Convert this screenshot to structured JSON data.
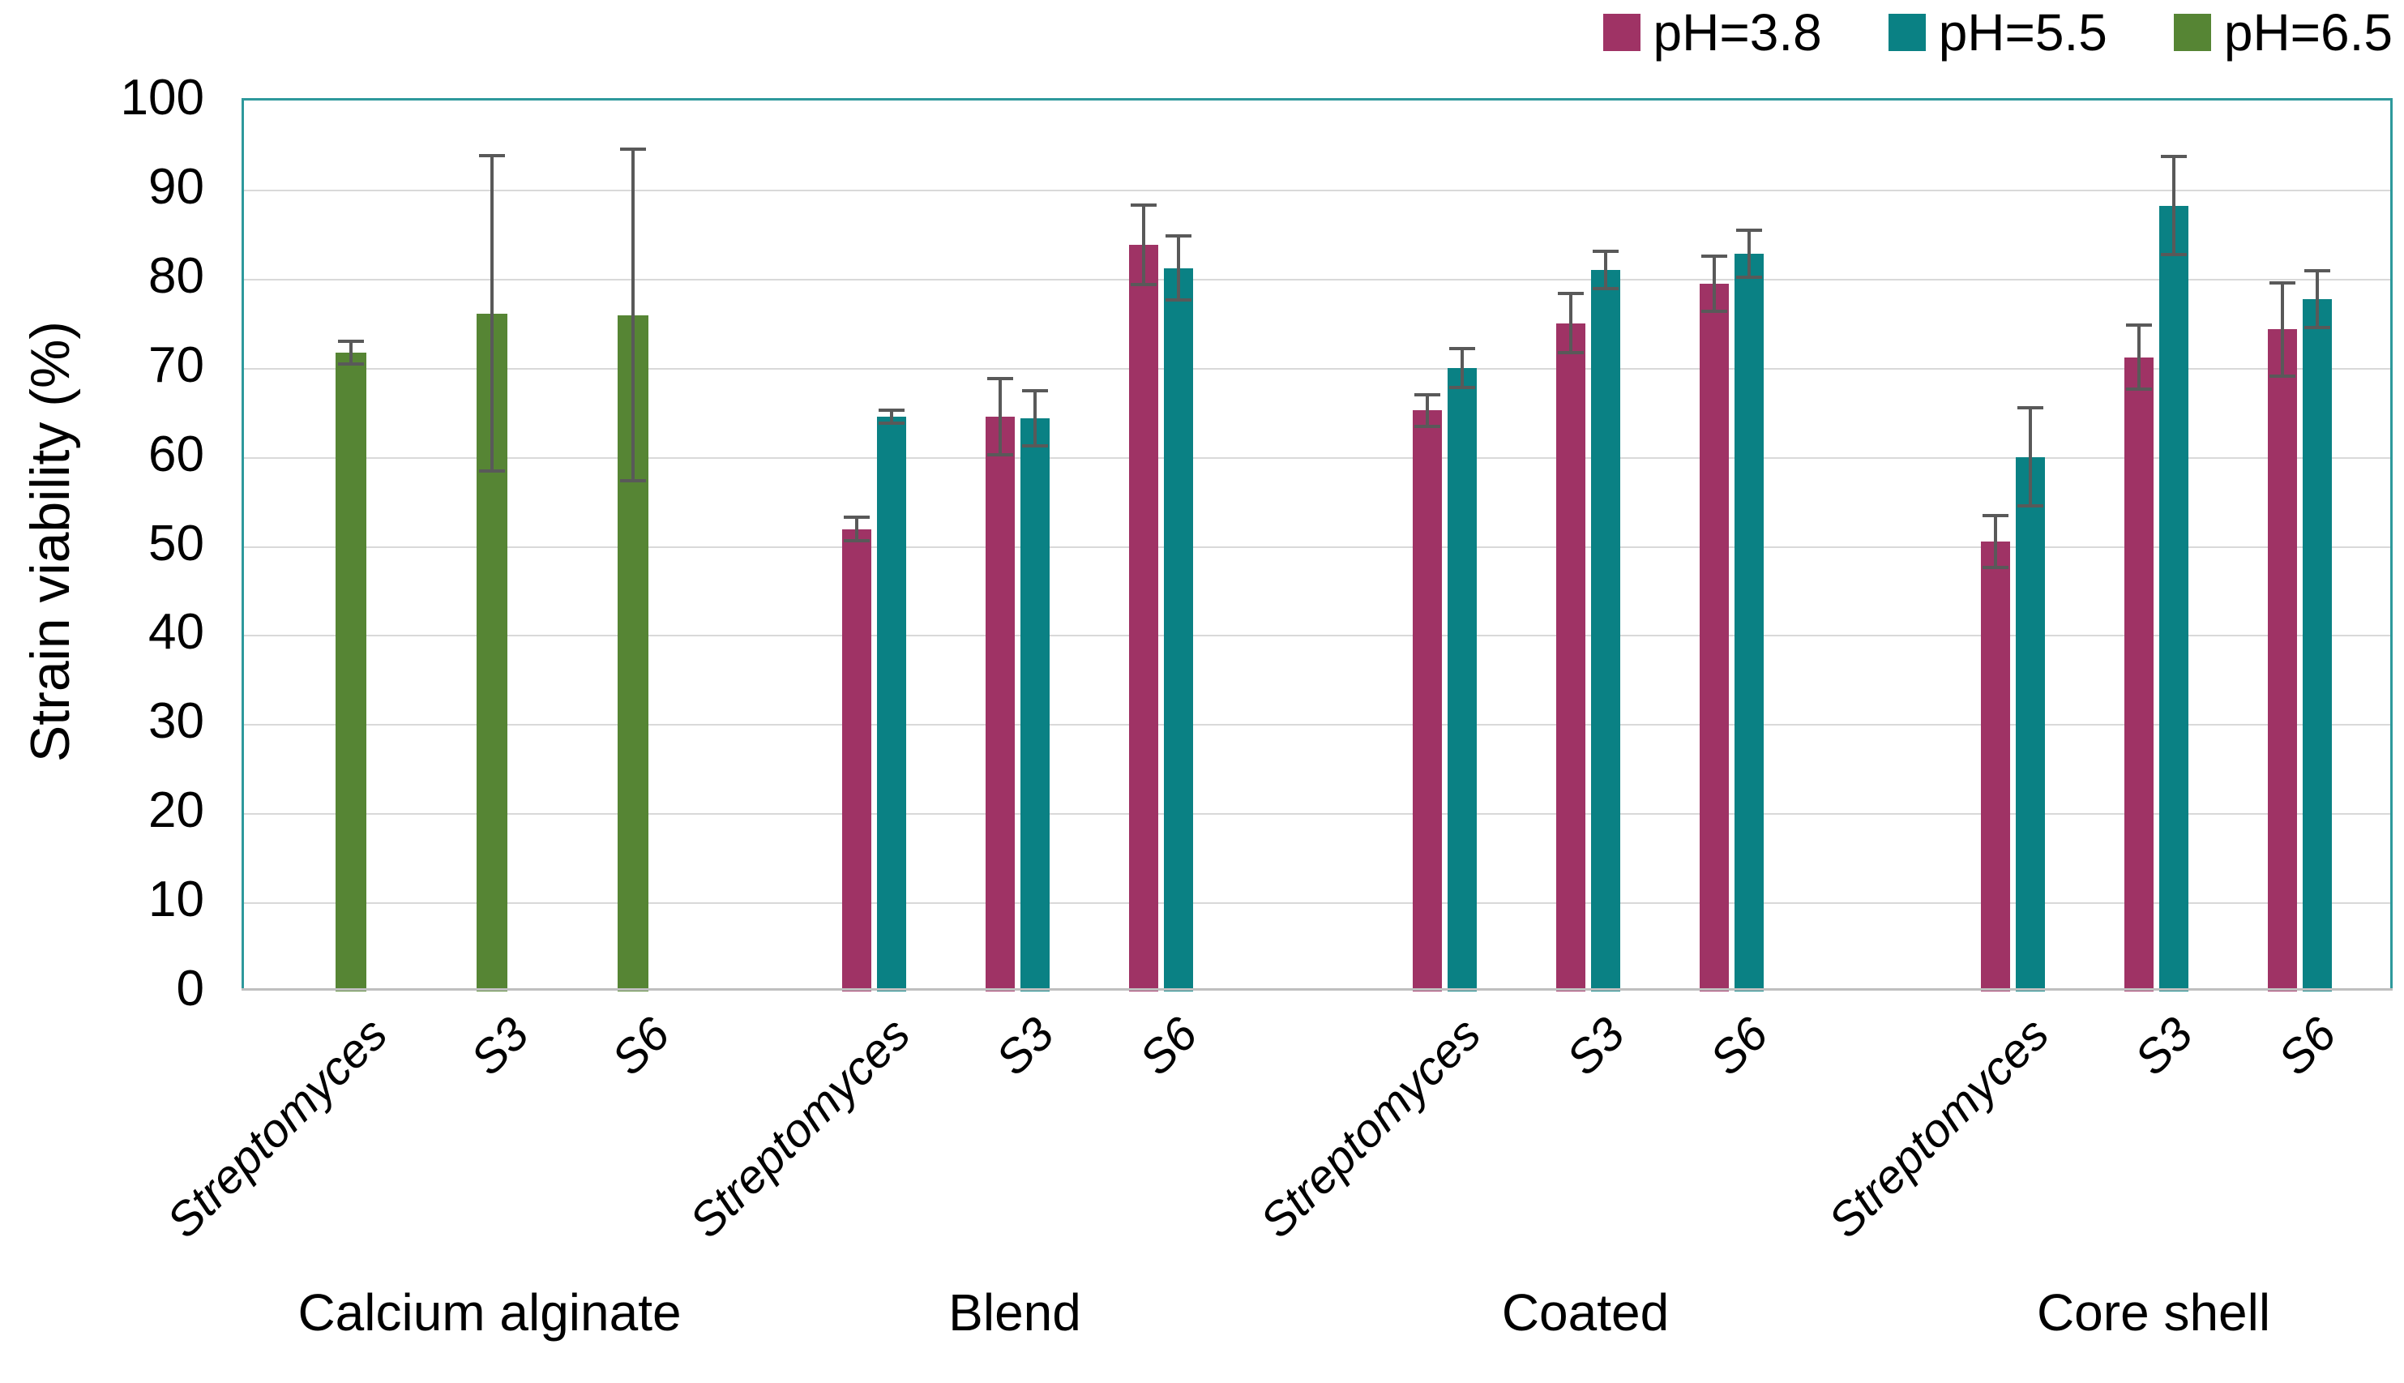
{
  "chart_data": {
    "type": "bar",
    "title": "",
    "xlabel": "",
    "ylabel": "Strain viability (%)",
    "ylim": [
      0,
      100
    ],
    "ytick_step": 10,
    "ytick_labels": [
      "0",
      "10",
      "20",
      "30",
      "40",
      "50",
      "60",
      "70",
      "80",
      "90",
      "100"
    ],
    "grid": "horizontal",
    "legend": {
      "position": "top-right",
      "entries": [
        "pH=3.8",
        "pH=5.5",
        "pH=6.5"
      ]
    },
    "series": [
      {
        "name": "pH=3.8",
        "color": "#9F3365"
      },
      {
        "name": "pH=5.5",
        "color": "#0A8184"
      },
      {
        "name": "pH=6.5",
        "color": "#568534"
      }
    ],
    "groups": [
      {
        "label": "Calcium alginate",
        "categories": [
          "Streptomyces",
          "S3",
          "S6"
        ],
        "bars": [
          [
            {
              "series": "pH=6.5",
              "value": 71.7,
              "error": 1.3
            }
          ],
          [
            {
              "series": "pH=6.5",
              "value": 76.1,
              "error": 17.7
            }
          ],
          [
            {
              "series": "pH=6.5",
              "value": 75.9,
              "error": 18.6
            }
          ]
        ]
      },
      {
        "label": "Blend",
        "categories": [
          "Streptomyces",
          "S3",
          "S6"
        ],
        "bars": [
          [
            {
              "series": "pH=3.8",
              "value": 51.9,
              "error": 1.3
            },
            {
              "series": "pH=5.5",
              "value": 64.5,
              "error": 0.7
            }
          ],
          [
            {
              "series": "pH=3.8",
              "value": 64.5,
              "error": 4.3
            },
            {
              "series": "pH=5.5",
              "value": 64.3,
              "error": 3.1
            }
          ],
          [
            {
              "series": "pH=3.8",
              "value": 83.8,
              "error": 4.5
            },
            {
              "series": "pH=5.5",
              "value": 81.2,
              "error": 3.6
            }
          ]
        ]
      },
      {
        "label": "Coated",
        "categories": [
          "Streptomyces",
          "S3",
          "S6"
        ],
        "bars": [
          [
            {
              "series": "pH=3.8",
              "value": 65.2,
              "error": 1.8
            },
            {
              "series": "pH=5.5",
              "value": 70.0,
              "error": 2.2
            }
          ],
          [
            {
              "series": "pH=3.8",
              "value": 75.0,
              "error": 3.3
            },
            {
              "series": "pH=5.5",
              "value": 81.0,
              "error": 2.1
            }
          ],
          [
            {
              "series": "pH=3.8",
              "value": 79.4,
              "error": 3.1
            },
            {
              "series": "pH=5.5",
              "value": 82.8,
              "error": 2.6
            }
          ]
        ]
      },
      {
        "label": "Core shell",
        "categories": [
          "Streptomyces",
          "S3",
          "S6"
        ],
        "bars": [
          [
            {
              "series": "pH=3.8",
              "value": 50.5,
              "error": 2.9
            },
            {
              "series": "pH=5.5",
              "value": 60.0,
              "error": 5.5
            }
          ],
          [
            {
              "series": "pH=3.8",
              "value": 71.2,
              "error": 3.6
            },
            {
              "series": "pH=5.5",
              "value": 88.2,
              "error": 5.5
            }
          ],
          [
            {
              "series": "pH=3.8",
              "value": 74.3,
              "error": 5.2
            },
            {
              "series": "pH=5.5",
              "value": 77.7,
              "error": 3.2
            }
          ]
        ]
      }
    ],
    "styles": {
      "plot_border_color": "#2E999C",
      "gridline_color": "#D9D9D9",
      "axis_line_color": "#BFBFBF",
      "error_bar_color": "#595959",
      "text_color": "#000000",
      "background": "#FFFFFF"
    }
  }
}
